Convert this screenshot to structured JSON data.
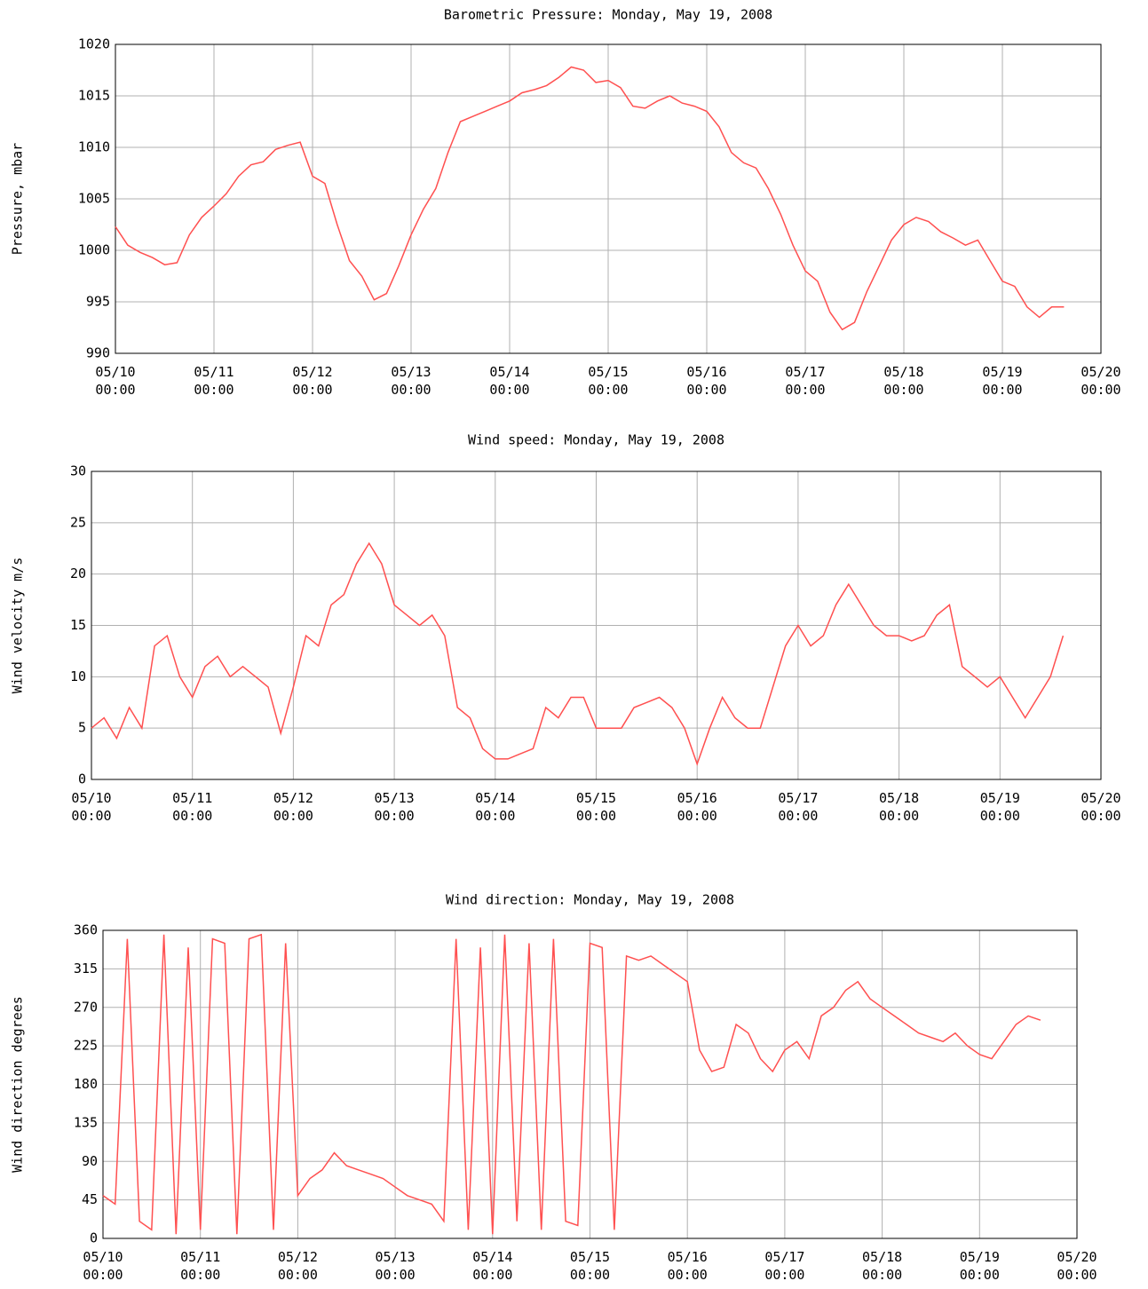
{
  "chart_data": [
    {
      "type": "line",
      "title": "Barometric Pressure: Monday, May 19, 2008",
      "ylabel": "Pressure, mbar",
      "color": "#ff5050",
      "grid": true,
      "xlim": [
        "05/10\n00:00",
        "05/20\n00:00"
      ],
      "xticks": [
        "05/10\n00:00",
        "05/11\n00:00",
        "05/12\n00:00",
        "05/13\n00:00",
        "05/14\n00:00",
        "05/15\n00:00",
        "05/16\n00:00",
        "05/17\n00:00",
        "05/18\n00:00",
        "05/19\n00:00",
        "05/20\n00:00"
      ],
      "ylim": [
        990,
        1020
      ],
      "yticks": [
        990,
        995,
        1000,
        1005,
        1010,
        1015,
        1020
      ],
      "x": [
        "05/10 00:00",
        "05/10 03:00",
        "05/10 06:00",
        "05/10 09:00",
        "05/10 12:00",
        "05/10 15:00",
        "05/10 18:00",
        "05/10 21:00",
        "05/11 00:00",
        "05/11 03:00",
        "05/11 06:00",
        "05/11 09:00",
        "05/11 12:00",
        "05/11 15:00",
        "05/11 18:00",
        "05/11 21:00",
        "05/12 00:00",
        "05/12 03:00",
        "05/12 06:00",
        "05/12 09:00",
        "05/12 12:00",
        "05/12 15:00",
        "05/12 18:00",
        "05/12 21:00",
        "05/13 00:00",
        "05/13 03:00",
        "05/13 06:00",
        "05/13 09:00",
        "05/13 12:00",
        "05/13 15:00",
        "05/13 18:00",
        "05/13 21:00",
        "05/14 00:00",
        "05/14 03:00",
        "05/14 06:00",
        "05/14 09:00",
        "05/14 12:00",
        "05/14 15:00",
        "05/14 18:00",
        "05/14 21:00",
        "05/15 00:00",
        "05/15 03:00",
        "05/15 06:00",
        "05/15 09:00",
        "05/15 12:00",
        "05/15 15:00",
        "05/15 18:00",
        "05/15 21:00",
        "05/16 00:00",
        "05/16 03:00",
        "05/16 06:00",
        "05/16 09:00",
        "05/16 12:00",
        "05/16 15:00",
        "05/16 18:00",
        "05/16 21:00",
        "05/17 00:00",
        "05/17 03:00",
        "05/17 06:00",
        "05/17 09:00",
        "05/17 12:00",
        "05/17 15:00",
        "05/17 18:00",
        "05/17 21:00",
        "05/18 00:00",
        "05/18 03:00",
        "05/18 06:00",
        "05/18 09:00",
        "05/18 12:00",
        "05/18 15:00",
        "05/18 18:00",
        "05/18 21:00",
        "05/19 00:00",
        "05/19 03:00",
        "05/19 06:00",
        "05/19 09:00",
        "05/19 12:00",
        "05/19 15:00"
      ],
      "values": [
        1002.3,
        1000.5,
        999.8,
        999.3,
        998.6,
        998.8,
        1001.5,
        1003.2,
        1004.3,
        1005.5,
        1007.2,
        1008.3,
        1008.6,
        1009.8,
        1010.2,
        1010.5,
        1007.2,
        1006.5,
        1002.5,
        999,
        997.5,
        995.2,
        995.8,
        998.5,
        1001.5,
        1004,
        1006,
        1009.5,
        1012.5,
        1013,
        1013.5,
        1014,
        1014.5,
        1015.3,
        1015.6,
        1016,
        1016.8,
        1017.8,
        1017.5,
        1016.3,
        1016.5,
        1015.8,
        1014,
        1013.8,
        1014.5,
        1015,
        1014.3,
        1014,
        1013.5,
        1012,
        1009.5,
        1008.5,
        1008,
        1006,
        1003.5,
        1000.5,
        998,
        997,
        994,
        992.3,
        993,
        996,
        998.5,
        1001,
        1002.5,
        1003.2,
        1002.8,
        1001.8,
        1001.2,
        1000.5,
        1001,
        999,
        997,
        996.5,
        994.5,
        993.5,
        994.5,
        994.5
      ]
    },
    {
      "type": "line",
      "title": "Wind speed: Monday, May 19, 2008",
      "ylabel": "Wind velocity m/s",
      "color": "#ff5050",
      "grid": true,
      "xlim": [
        "05/10\n00:00",
        "05/20\n00:00"
      ],
      "xticks": [
        "05/10\n00:00",
        "05/11\n00:00",
        "05/12\n00:00",
        "05/13\n00:00",
        "05/14\n00:00",
        "05/15\n00:00",
        "05/16\n00:00",
        "05/17\n00:00",
        "05/18\n00:00",
        "05/19\n00:00",
        "05/20\n00:00"
      ],
      "ylim": [
        0,
        30
      ],
      "yticks": [
        0,
        5,
        10,
        15,
        20,
        25,
        30
      ],
      "x": [
        "05/10 00:00",
        "05/10 03:00",
        "05/10 06:00",
        "05/10 09:00",
        "05/10 12:00",
        "05/10 15:00",
        "05/10 18:00",
        "05/10 21:00",
        "05/11 00:00",
        "05/11 03:00",
        "05/11 06:00",
        "05/11 09:00",
        "05/11 12:00",
        "05/11 15:00",
        "05/11 18:00",
        "05/11 21:00",
        "05/12 00:00",
        "05/12 03:00",
        "05/12 06:00",
        "05/12 09:00",
        "05/12 12:00",
        "05/12 15:00",
        "05/12 18:00",
        "05/12 21:00",
        "05/13 00:00",
        "05/13 03:00",
        "05/13 06:00",
        "05/13 09:00",
        "05/13 12:00",
        "05/13 15:00",
        "05/13 18:00",
        "05/13 21:00",
        "05/14 00:00",
        "05/14 03:00",
        "05/14 06:00",
        "05/14 09:00",
        "05/14 12:00",
        "05/14 15:00",
        "05/14 18:00",
        "05/14 21:00",
        "05/15 00:00",
        "05/15 03:00",
        "05/15 06:00",
        "05/15 09:00",
        "05/15 12:00",
        "05/15 15:00",
        "05/15 18:00",
        "05/15 21:00",
        "05/16 00:00",
        "05/16 03:00",
        "05/16 06:00",
        "05/16 09:00",
        "05/16 12:00",
        "05/16 15:00",
        "05/16 18:00",
        "05/16 21:00",
        "05/17 00:00",
        "05/17 03:00",
        "05/17 06:00",
        "05/17 09:00",
        "05/17 12:00",
        "05/17 15:00",
        "05/17 18:00",
        "05/17 21:00",
        "05/18 00:00",
        "05/18 03:00",
        "05/18 06:00",
        "05/18 09:00",
        "05/18 12:00",
        "05/18 15:00",
        "05/18 18:00",
        "05/18 21:00",
        "05/19 00:00",
        "05/19 03:00",
        "05/19 06:00",
        "05/19 09:00",
        "05/19 12:00",
        "05/19 15:00"
      ],
      "values": [
        5,
        6,
        4,
        7,
        5,
        13,
        14,
        10,
        8,
        11,
        12,
        10,
        11,
        10,
        9,
        4.5,
        9,
        14,
        13,
        17,
        18,
        21,
        23,
        21,
        17,
        16,
        15,
        16,
        14,
        7,
        6,
        3,
        2,
        2,
        2.5,
        3,
        7,
        6,
        8,
        8,
        5,
        5,
        5,
        7,
        7.5,
        8,
        7,
        5,
        1.5,
        5,
        8,
        6,
        5,
        5,
        9,
        13,
        15,
        13,
        14,
        17,
        19,
        17,
        15,
        14,
        14,
        13.5,
        14,
        16,
        17,
        11,
        10,
        9,
        10,
        8,
        6,
        8,
        10,
        14
      ]
    },
    {
      "type": "line",
      "title": "Wind direction: Monday, May 19, 2008",
      "ylabel": "Wind direction degrees",
      "color": "#ff5050",
      "grid": true,
      "xlim": [
        "05/10\n00:00",
        "05/20\n00:00"
      ],
      "xticks": [
        "05/10\n00:00",
        "05/11\n00:00",
        "05/12\n00:00",
        "05/13\n00:00",
        "05/14\n00:00",
        "05/15\n00:00",
        "05/16\n00:00",
        "05/17\n00:00",
        "05/18\n00:00",
        "05/19\n00:00",
        "05/20\n00:00"
      ],
      "ylim": [
        0,
        360
      ],
      "yticks": [
        0,
        45,
        90,
        135,
        180,
        225,
        270,
        315,
        360
      ],
      "x": [
        "05/10 00:00",
        "05/10 03:00",
        "05/10 06:00",
        "05/10 09:00",
        "05/10 12:00",
        "05/10 15:00",
        "05/10 18:00",
        "05/10 21:00",
        "05/11 00:00",
        "05/11 03:00",
        "05/11 06:00",
        "05/11 09:00",
        "05/11 12:00",
        "05/11 15:00",
        "05/11 18:00",
        "05/11 21:00",
        "05/12 00:00",
        "05/12 03:00",
        "05/12 06:00",
        "05/12 09:00",
        "05/12 12:00",
        "05/12 15:00",
        "05/12 18:00",
        "05/12 21:00",
        "05/13 00:00",
        "05/13 03:00",
        "05/13 06:00",
        "05/13 09:00",
        "05/13 12:00",
        "05/13 15:00",
        "05/13 18:00",
        "05/13 21:00",
        "05/14 00:00",
        "05/14 03:00",
        "05/14 06:00",
        "05/14 09:00",
        "05/14 12:00",
        "05/14 15:00",
        "05/14 18:00",
        "05/14 21:00",
        "05/15 00:00",
        "05/15 03:00",
        "05/15 06:00",
        "05/15 09:00",
        "05/15 12:00",
        "05/15 15:00",
        "05/15 18:00",
        "05/15 21:00",
        "05/16 00:00",
        "05/16 03:00",
        "05/16 06:00",
        "05/16 09:00",
        "05/16 12:00",
        "05/16 15:00",
        "05/16 18:00",
        "05/16 21:00",
        "05/17 00:00",
        "05/17 03:00",
        "05/17 06:00",
        "05/17 09:00",
        "05/17 12:00",
        "05/17 15:00",
        "05/17 18:00",
        "05/17 21:00",
        "05/18 00:00",
        "05/18 03:00",
        "05/18 06:00",
        "05/18 09:00",
        "05/18 12:00",
        "05/18 15:00",
        "05/18 18:00",
        "05/18 21:00",
        "05/19 00:00",
        "05/19 03:00",
        "05/19 06:00",
        "05/19 09:00",
        "05/19 12:00",
        "05/19 15:00"
      ],
      "values": [
        50,
        40,
        350,
        20,
        10,
        355,
        5,
        340,
        10,
        350,
        345,
        5,
        350,
        355,
        10,
        345,
        50,
        70,
        80,
        100,
        85,
        80,
        75,
        70,
        60,
        50,
        45,
        40,
        20,
        350,
        10,
        340,
        5,
        355,
        20,
        345,
        10,
        350,
        20,
        15,
        345,
        340,
        10,
        330,
        325,
        330,
        320,
        310,
        300,
        220,
        195,
        200,
        250,
        240,
        210,
        195,
        220,
        230,
        210,
        260,
        270,
        290,
        300,
        280,
        270,
        260,
        250,
        240,
        235,
        230,
        240,
        225,
        215,
        210,
        230,
        250,
        260,
        255
      ]
    }
  ]
}
